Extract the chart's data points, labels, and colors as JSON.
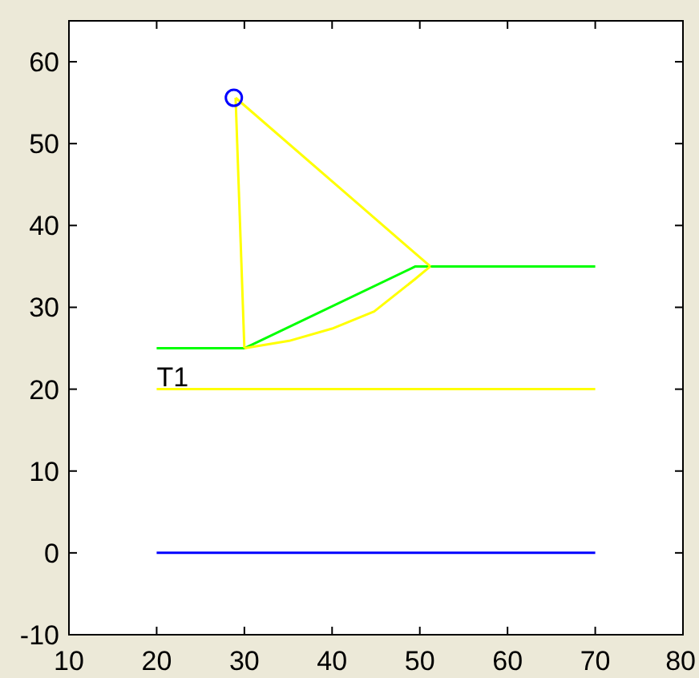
{
  "chart_data": {
    "type": "line",
    "xlim": [
      10,
      80
    ],
    "ylim": [
      -10,
      65
    ],
    "xticks": [
      10,
      20,
      30,
      40,
      50,
      60,
      70,
      80
    ],
    "yticks": [
      -10,
      0,
      10,
      20,
      30,
      40,
      50,
      60
    ],
    "line_style": "solid",
    "marker": "none",
    "series": [
      {
        "color": "#0000ff",
        "x": [
          20,
          70
        ],
        "values": [
          0,
          0
        ]
      },
      {
        "color": "#ffff00",
        "x": [
          20,
          70
        ],
        "values": [
          20,
          20
        ]
      },
      {
        "color": "#00ff00",
        "x": [
          20,
          30,
          49.5,
          70
        ],
        "values": [
          25,
          25,
          35,
          35
        ]
      },
      {
        "color": "#ffff00",
        "x": [
          29,
          30
        ],
        "values": [
          55.6,
          25
        ]
      },
      {
        "color": "#ffff00",
        "x": [
          29,
          51.2
        ],
        "values": [
          55.6,
          35
        ]
      },
      {
        "color": "#ffff00",
        "x": [
          30,
          35.1,
          40,
          44.8,
          49.4,
          51.2
        ],
        "values": [
          25,
          25.9,
          27.4,
          29.5,
          33.4,
          35
        ]
      },
      {
        "type": "scatter",
        "color": "#0000ff",
        "marker": "circle",
        "x": [
          28.8
        ],
        "values": [
          55.6
        ]
      }
    ],
    "annotations": [
      {
        "text": "T1",
        "x": 20,
        "y": 20
      }
    ]
  }
}
